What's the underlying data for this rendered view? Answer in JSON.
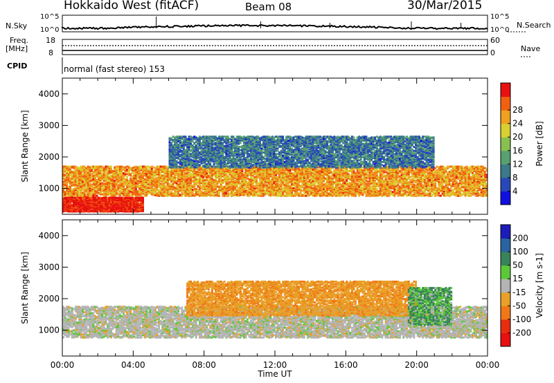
{
  "header": {
    "station": "Hokkaido West (fitACF)",
    "beam": "Beam 08",
    "date": "30/Mar/2015"
  },
  "strips": {
    "nsky_label": "N.Sky",
    "nsky_top": "10^5",
    "nsky_bottom": "10^0",
    "nsearch_label": "N.Search",
    "nsearch_top": "10^5",
    "nsearch_bottom": "10^0",
    "freq_label": "Freq.",
    "freq_unit": "[MHz]",
    "freq_top": "18",
    "freq_bottom": "8",
    "nave_label": "Nave",
    "nave_top": "60",
    "nave_bottom": "0",
    "cpid_label": "CPID",
    "cpid_value": "normal (fast stereo) 153"
  },
  "chart_data": [
    {
      "type": "heatmap",
      "title": "",
      "xlabel": "",
      "ylabel": "Slant Range [km]",
      "xlim": [
        0,
        24
      ],
      "ylim": [
        180,
        4500
      ],
      "yticks": [
        "1000",
        "2000",
        "3000",
        "4000"
      ],
      "colorbar": {
        "label": "Power [dB]",
        "ticks": [
          "4",
          "8",
          "12",
          "16",
          "20",
          "24",
          "28"
        ],
        "range": [
          0,
          30
        ],
        "colors": [
          "#1010e0",
          "#2848b8",
          "#3a7a8a",
          "#58a070",
          "#88c050",
          "#d8d030",
          "#f0a020",
          "#f06010",
          "#e81010"
        ]
      },
      "features": [
        {
          "name": "near-range echoes",
          "start_hour": 0.0,
          "end_hour": 4.6,
          "range_km": [
            300,
            750
          ],
          "power_db": 29
        },
        {
          "name": "main band",
          "start_hour": 0.0,
          "end_hour": 24.0,
          "range_km": [
            800,
            1750
          ],
          "power_db": 22
        },
        {
          "name": "far echoes",
          "start_hour": 6.0,
          "end_hour": 21.0,
          "range_km": [
            1700,
            2700
          ],
          "power_db": 8
        }
      ]
    },
    {
      "type": "heatmap",
      "title": "",
      "xlabel": "Time UT",
      "ylabel": "Slant Range [km]",
      "xlim": [
        0,
        24
      ],
      "ylim": [
        180,
        4500
      ],
      "xticks": [
        "00:00",
        "04:00",
        "08:00",
        "12:00",
        "16:00",
        "20:00",
        "00:00"
      ],
      "yticks": [
        "1000",
        "2000",
        "3000",
        "4000"
      ],
      "colorbar": {
        "label": "Velocity [m s-1]",
        "ticks": [
          "200",
          "100",
          "50",
          "15",
          "-15",
          "-50",
          "-100",
          "-200"
        ],
        "range": [
          -250,
          250
        ],
        "colors": [
          "#1c1cb8",
          "#2a64a0",
          "#38845a",
          "#5cc838",
          "#b4b4b4",
          "#e8a028",
          "#f07818",
          "#e82e10",
          "#e81010"
        ]
      },
      "features": [
        {
          "name": "ground scatter band",
          "start_hour": 0.0,
          "end_hour": 24.0,
          "range_km": [
            800,
            1800
          ],
          "velocity_ms": 0
        },
        {
          "name": "ionospheric echoes",
          "start_hour": 7.0,
          "end_hour": 20.0,
          "range_km": [
            1500,
            2600
          ],
          "velocity_ms": -40
        },
        {
          "name": "positive velocity streak",
          "start_hour": 19.5,
          "end_hour": 22.0,
          "range_km": [
            1200,
            2400
          ],
          "velocity_ms": 30
        }
      ]
    }
  ]
}
